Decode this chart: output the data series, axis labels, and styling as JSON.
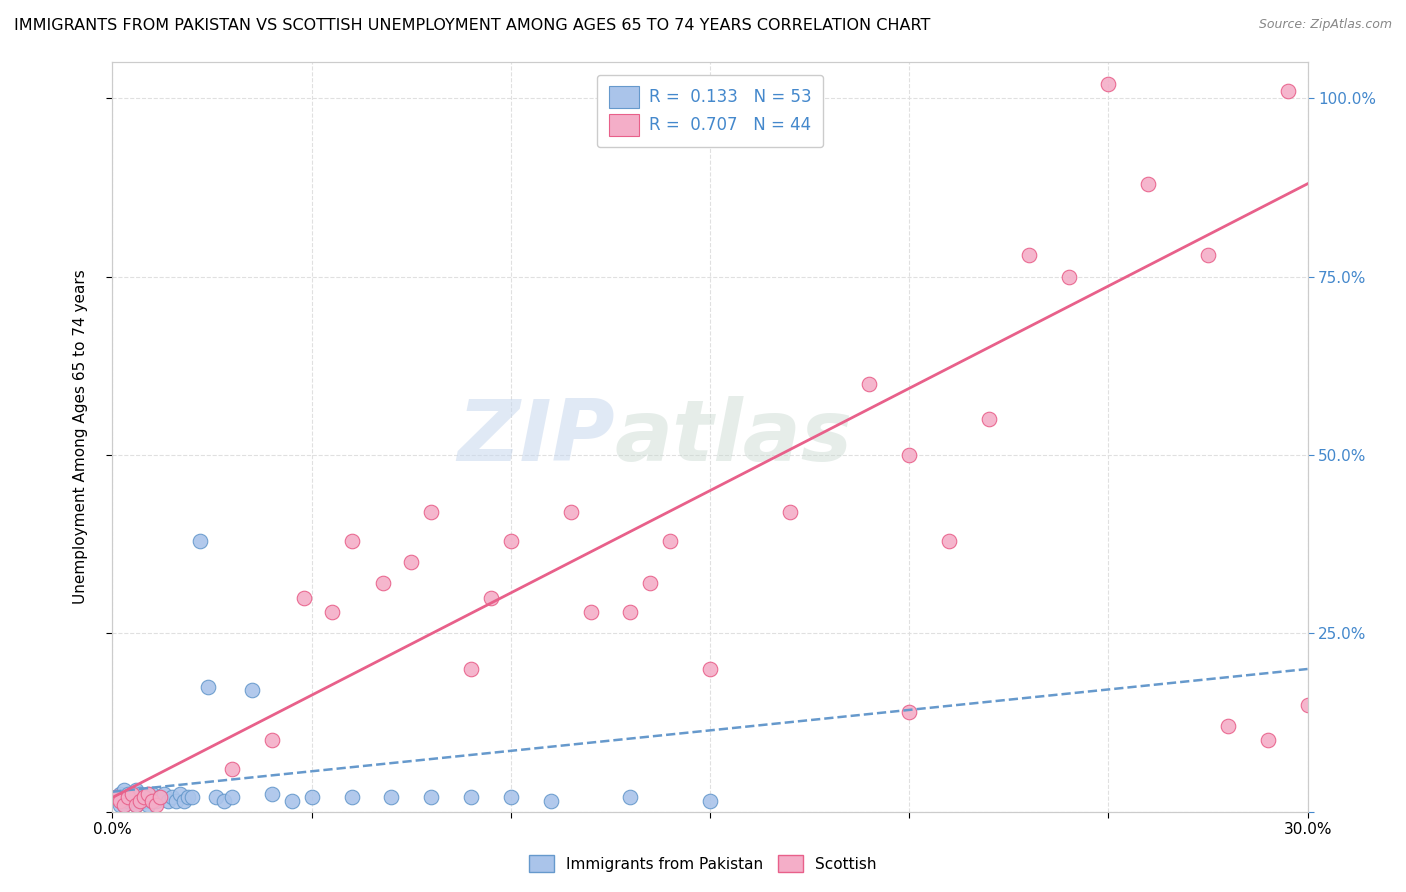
{
  "title": "IMMIGRANTS FROM PAKISTAN VS SCOTTISH UNEMPLOYMENT AMONG AGES 65 TO 74 YEARS CORRELATION CHART",
  "source": "Source: ZipAtlas.com",
  "ylabel": "Unemployment Among Ages 65 to 74 years",
  "xlim": [
    0.0,
    0.3
  ],
  "ylim": [
    0.0,
    1.05
  ],
  "blue_color": "#aac4ea",
  "blue_edge_color": "#6699cc",
  "pink_color": "#f4aec8",
  "pink_edge_color": "#e8608a",
  "blue_line_color": "#6699cc",
  "pink_line_color": "#e8608a",
  "legend_blue_label": "Immigrants from Pakistan",
  "legend_pink_label": "Scottish",
  "R_blue": 0.133,
  "N_blue": 53,
  "R_pink": 0.707,
  "N_pink": 44,
  "watermark_zip": "ZIP",
  "watermark_atlas": "atlas",
  "grid_color": "#e0e0e0",
  "right_tick_color": "#4488cc",
  "blue_x": [
    0.001,
    0.002,
    0.002,
    0.002,
    0.003,
    0.003,
    0.003,
    0.004,
    0.004,
    0.004,
    0.005,
    0.005,
    0.005,
    0.006,
    0.006,
    0.006,
    0.007,
    0.007,
    0.007,
    0.008,
    0.008,
    0.009,
    0.009,
    0.01,
    0.01,
    0.01,
    0.011,
    0.012,
    0.013,
    0.014,
    0.015,
    0.016,
    0.017,
    0.018,
    0.019,
    0.02,
    0.022,
    0.024,
    0.026,
    0.028,
    0.03,
    0.035,
    0.04,
    0.045,
    0.05,
    0.06,
    0.07,
    0.08,
    0.09,
    0.1,
    0.11,
    0.13,
    0.15
  ],
  "blue_y": [
    0.02,
    0.015,
    0.025,
    0.01,
    0.02,
    0.03,
    0.01,
    0.015,
    0.025,
    0.02,
    0.015,
    0.02,
    0.025,
    0.01,
    0.02,
    0.03,
    0.015,
    0.02,
    0.025,
    0.015,
    0.02,
    0.025,
    0.01,
    0.015,
    0.02,
    0.025,
    0.015,
    0.02,
    0.025,
    0.015,
    0.02,
    0.015,
    0.025,
    0.015,
    0.02,
    0.02,
    0.38,
    0.175,
    0.02,
    0.015,
    0.02,
    0.17,
    0.025,
    0.015,
    0.02,
    0.02,
    0.02,
    0.02,
    0.02,
    0.02,
    0.015,
    0.02,
    0.015
  ],
  "pink_x": [
    0.001,
    0.002,
    0.003,
    0.004,
    0.005,
    0.006,
    0.007,
    0.008,
    0.009,
    0.01,
    0.011,
    0.012,
    0.03,
    0.04,
    0.048,
    0.055,
    0.06,
    0.068,
    0.075,
    0.08,
    0.09,
    0.095,
    0.1,
    0.115,
    0.12,
    0.13,
    0.135,
    0.14,
    0.15,
    0.17,
    0.19,
    0.2,
    0.21,
    0.22,
    0.23,
    0.24,
    0.25,
    0.26,
    0.275,
    0.28,
    0.29,
    0.295,
    0.3,
    0.2
  ],
  "pink_y": [
    0.02,
    0.015,
    0.01,
    0.02,
    0.025,
    0.01,
    0.015,
    0.02,
    0.025,
    0.015,
    0.01,
    0.02,
    0.06,
    0.1,
    0.3,
    0.28,
    0.38,
    0.32,
    0.35,
    0.42,
    0.2,
    0.3,
    0.38,
    0.42,
    0.28,
    0.28,
    0.32,
    0.38,
    0.2,
    0.42,
    0.6,
    0.5,
    0.38,
    0.55,
    0.78,
    0.75,
    1.02,
    0.88,
    0.78,
    0.12,
    0.1,
    1.01,
    0.15,
    0.14
  ]
}
